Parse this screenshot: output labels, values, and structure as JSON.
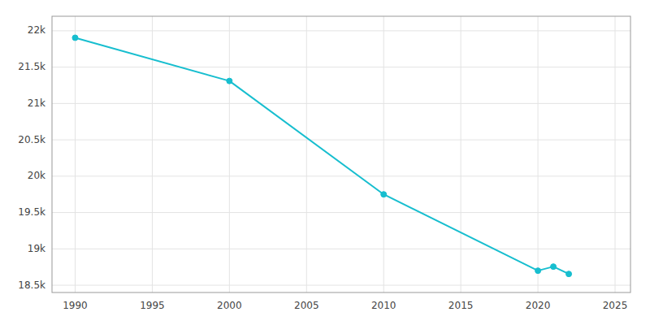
{
  "chart_data": {
    "type": "line",
    "x": [
      1990,
      2000,
      2010,
      2020,
      2021,
      2022
    ],
    "values": [
      21904,
      21310,
      19750,
      18700,
      18756,
      18655
    ],
    "color": "#17BECF",
    "marker": "circle",
    "xlim": [
      1988.5,
      2026
    ],
    "ylim": [
      18400,
      22200
    ],
    "xticks": [
      1990,
      1995,
      2000,
      2005,
      2010,
      2015,
      2020,
      2025
    ],
    "yticks": [
      {
        "value": 18500,
        "label": "18.5k"
      },
      {
        "value": 19000,
        "label": "19k"
      },
      {
        "value": 19500,
        "label": "19.5k"
      },
      {
        "value": 20000,
        "label": "20k"
      },
      {
        "value": 20500,
        "label": "20.5k"
      },
      {
        "value": 21000,
        "label": "21k"
      },
      {
        "value": 21500,
        "label": "21.5k"
      },
      {
        "value": 22000,
        "label": "22k"
      }
    ],
    "grid": true
  }
}
